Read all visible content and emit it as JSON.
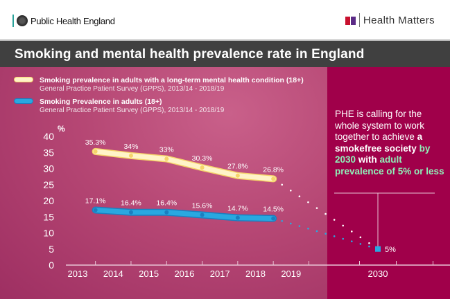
{
  "header": {
    "org": "Public Health England",
    "brand": "Health Matters"
  },
  "title": "Smoking and mental health prevalence rate in England",
  "callout": {
    "p1": "PHE is calling for the whole system to work together to achieve ",
    "p2": "a smokefree society",
    "p3": "by 2030",
    "p4": " with ",
    "p5": "adult prevalence of 5% or less"
  },
  "colors": {
    "mental_health_series": "#fff3c8",
    "adult_series": "#29a8e0",
    "panel": "#a0004a",
    "accent_green": "#8ff0b8"
  },
  "chart_data": {
    "type": "line",
    "ylabel": "%",
    "ylim": [
      0,
      40
    ],
    "yticks": [
      0,
      5,
      10,
      15,
      20,
      25,
      30,
      35,
      40
    ],
    "xticks": [
      "2013",
      "2014",
      "2015",
      "2016",
      "2017",
      "2018",
      "2019",
      "2030"
    ],
    "x": [
      "2013/14",
      "2014/15",
      "2015/16",
      "2016/17",
      "2017/18",
      "2018/19"
    ],
    "series": [
      {
        "name": "Smoking prevalence in adults with a long-term mental health condition (18+)",
        "source": "General Practice Patient Survey (GPPS), 2013/14 - 2018/19",
        "values": [
          35.3,
          34,
          33,
          30.3,
          27.8,
          26.8
        ],
        "labels": [
          "35.3%",
          "34%",
          "33%",
          "30.3%",
          "27.8%",
          "26.8%"
        ]
      },
      {
        "name": "Smoking Prevalence in adults (18+)",
        "source": "General Practice Patient Survey (GPPS), 2013/14 - 2018/19",
        "values": [
          17.1,
          16.4,
          16.4,
          15.6,
          14.7,
          14.5
        ],
        "labels": [
          "17.1%",
          "16.4%",
          "16.4%",
          "15.6%",
          "14.7%",
          "14.5%"
        ]
      }
    ],
    "target": {
      "x": "2030",
      "value": 5,
      "label": "5%"
    }
  }
}
